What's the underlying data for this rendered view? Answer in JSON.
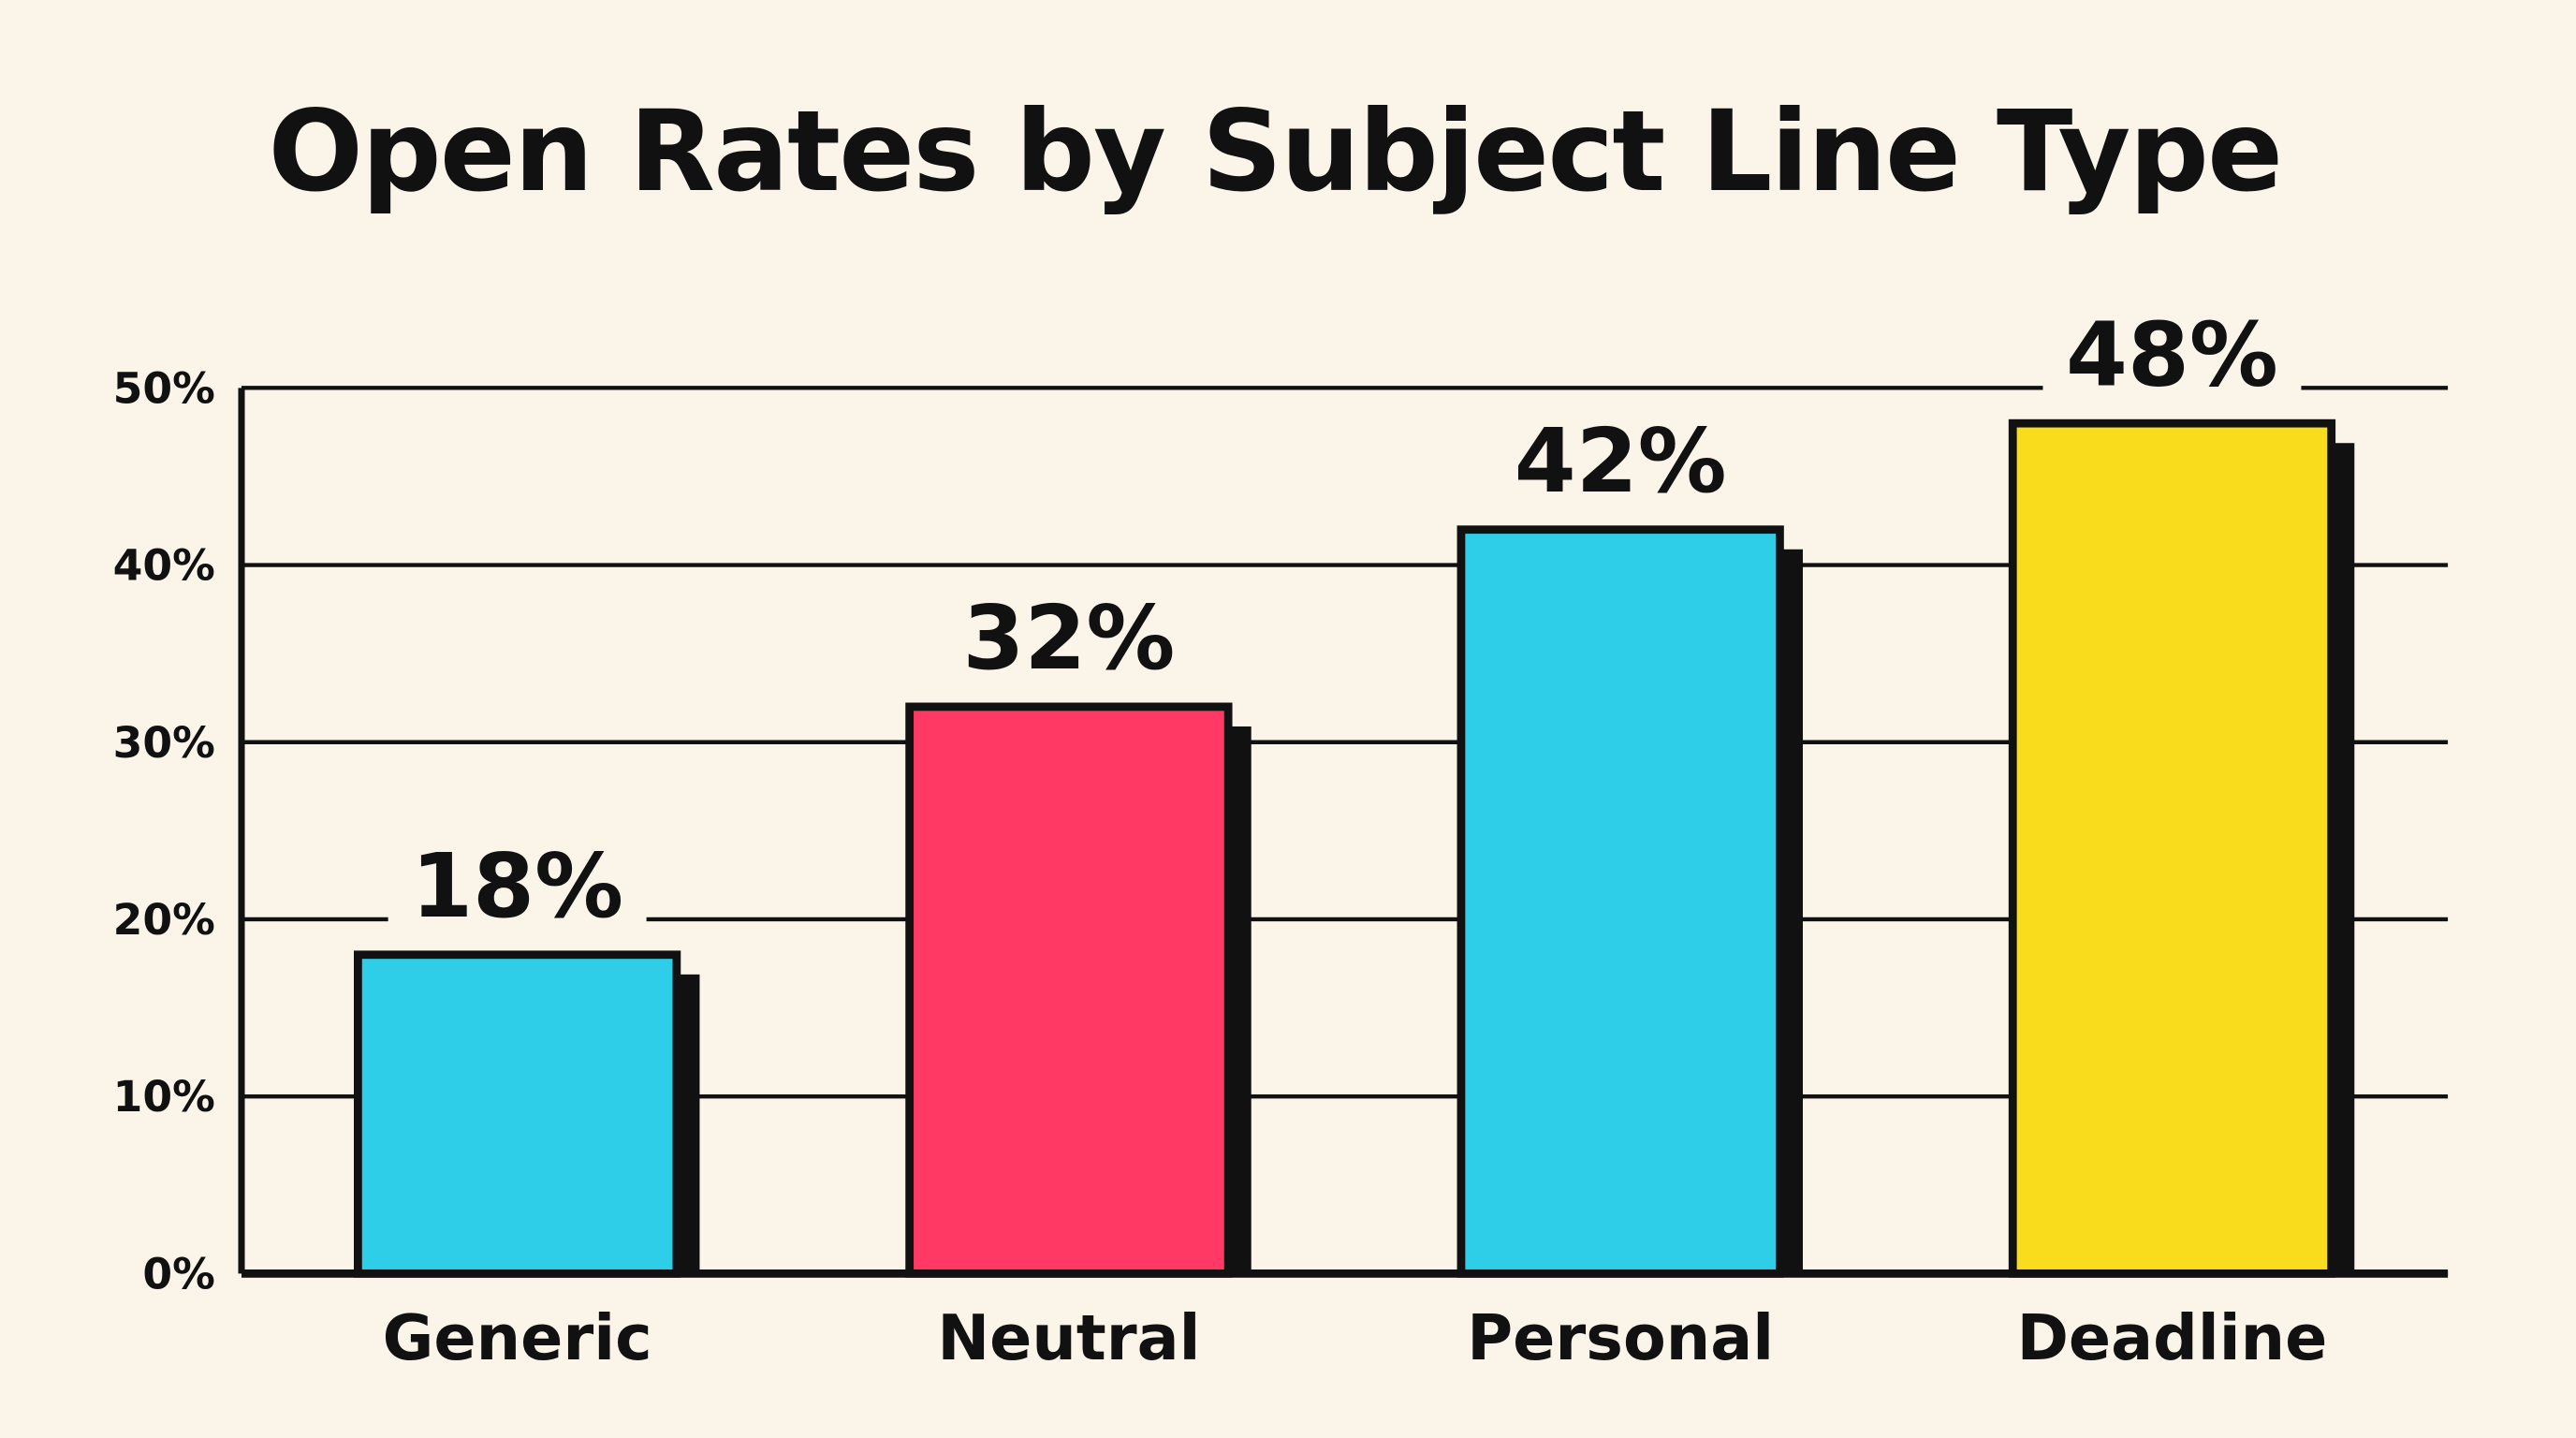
{
  "chart_data": {
    "type": "bar",
    "title": "Open Rates by Subject Line Type",
    "categories": [
      "Generic",
      "Neutral",
      "Personal",
      "Deadline"
    ],
    "values": [
      18,
      32,
      42,
      48
    ],
    "value_labels": [
      "18%",
      "32%",
      "42%",
      "48%"
    ],
    "colors": [
      "#2ecde8",
      "#ff3864",
      "#2ecde8",
      "#f9dc1c"
    ],
    "ylim": [
      0,
      50
    ],
    "yticks": [
      {
        "value": 0,
        "label": "0%"
      },
      {
        "value": 10,
        "label": "10%"
      },
      {
        "value": 20,
        "label": "20%"
      },
      {
        "value": 30,
        "label": "30%"
      },
      {
        "value": 40,
        "label": "40%"
      },
      {
        "value": 50,
        "label": "50%"
      }
    ],
    "grid": true
  }
}
